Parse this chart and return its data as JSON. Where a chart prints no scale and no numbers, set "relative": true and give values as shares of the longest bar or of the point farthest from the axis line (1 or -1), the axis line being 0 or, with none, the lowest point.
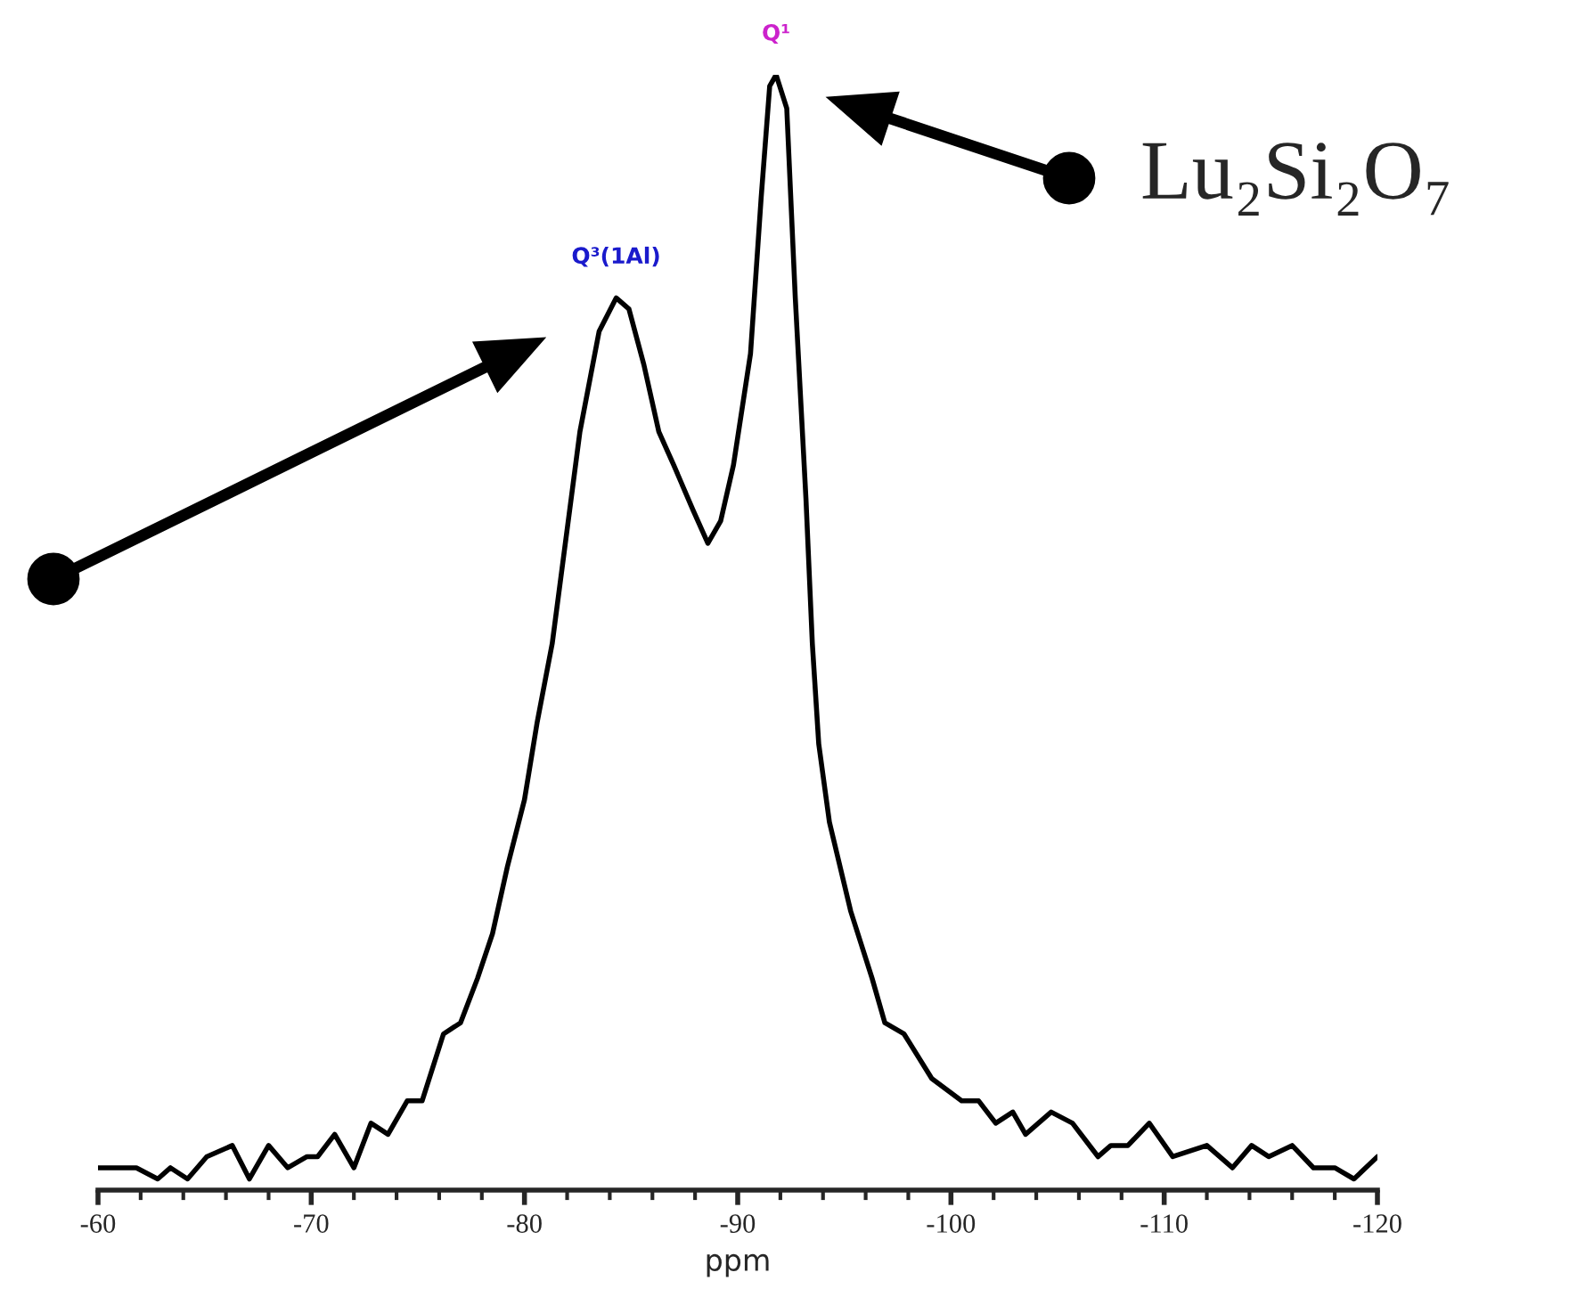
{
  "chart_data": {
    "type": "line",
    "relative": true,
    "xlabel": "ppm",
    "xlim": [
      -60,
      -120
    ],
    "xticks": [
      -60,
      -70,
      -80,
      -90,
      -100,
      -110,
      -120
    ],
    "grid": false,
    "legend": false,
    "marker": "none",
    "line_style": "solid",
    "annotations": [
      {
        "text": "Q³(1Al)",
        "x": -84.3,
        "y": 0.8
      },
      {
        "text": "Q¹",
        "x": -91.8,
        "y": 1.0
      },
      "Lu₂Si₂O₇"
    ],
    "series": [
      {
        "color": "#000000",
        "x": [
          -60,
          -61.1,
          -61.8,
          -62.8,
          -63.4,
          -64.2,
          -65.1,
          -66.3,
          -67.1,
          -68.0,
          -68.9,
          -69.8,
          -70.3,
          -71.1,
          -72.0,
          -72.8,
          -73.6,
          -74.5,
          -75.2,
          -76.2,
          -77.0,
          -77.8,
          -78.5,
          -79.2,
          -80.0,
          -80.6,
          -81.3,
          -82.6,
          -83.5,
          -84.3,
          -84.9,
          -85.6,
          -86.3,
          -87.0,
          -87.9,
          -88.6,
          -89.2,
          -89.8,
          -90.6,
          -91.1,
          -91.5,
          -91.8,
          -92.3,
          -92.7,
          -93.2,
          -93.5,
          -93.8,
          -94.3,
          -95.3,
          -96.3,
          -96.9,
          -97.8,
          -99.1,
          -99.8,
          -100.5,
          -101.3,
          -102.1,
          -102.9,
          -103.5,
          -104.7,
          -105.7,
          -106.9,
          -107.5,
          -108.3,
          -109.3,
          -110.4,
          -112.0,
          -113.2,
          -114.1,
          -114.9,
          -116.0,
          -117.0,
          -118.0,
          -118.9,
          -120.0
        ],
        "values": [
          0.02,
          0.02,
          0.02,
          0.01,
          0.02,
          0.01,
          0.03,
          0.04,
          0.01,
          0.04,
          0.02,
          0.03,
          0.03,
          0.05,
          0.02,
          0.06,
          0.05,
          0.08,
          0.08,
          0.14,
          0.15,
          0.19,
          0.23,
          0.29,
          0.35,
          0.42,
          0.49,
          0.68,
          0.77,
          0.8,
          0.79,
          0.74,
          0.68,
          0.65,
          0.61,
          0.58,
          0.6,
          0.65,
          0.75,
          0.89,
          0.99,
          1.0,
          0.97,
          0.8,
          0.62,
          0.49,
          0.4,
          0.33,
          0.25,
          0.19,
          0.15,
          0.14,
          0.1,
          0.09,
          0.08,
          0.08,
          0.06,
          0.07,
          0.05,
          0.07,
          0.06,
          0.03,
          0.04,
          0.04,
          0.06,
          0.03,
          0.04,
          0.02,
          0.04,
          0.03,
          0.04,
          0.02,
          0.02,
          0.01,
          0.03
        ]
      }
    ]
  }
}
